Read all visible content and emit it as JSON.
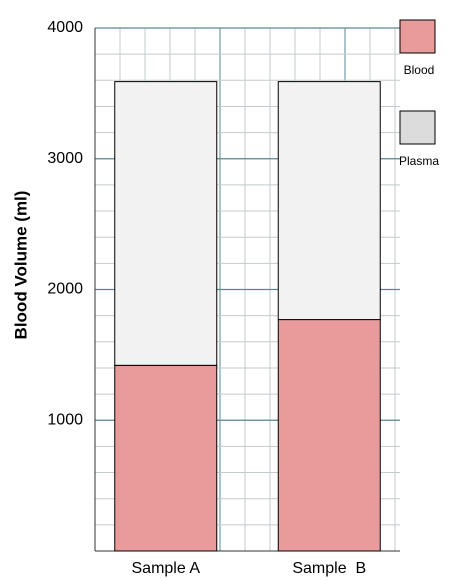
{
  "chart_data": {
    "type": "stacked_bar",
    "y_label": "Blood Volume (ml)",
    "categories": [
      "Sample A",
      "Sample  B"
    ],
    "series": [
      {
        "name": "Blood",
        "color": "#e99a9a",
        "values": [
          1420,
          1770
        ]
      },
      {
        "name": "Plasma",
        "color": "#f2f2f2",
        "values": [
          2170,
          1820
        ]
      }
    ],
    "ylim": [
      0,
      4000
    ],
    "yticks": [
      1000,
      2000,
      3000,
      4000
    ],
    "grid": true,
    "legend": "right"
  }
}
